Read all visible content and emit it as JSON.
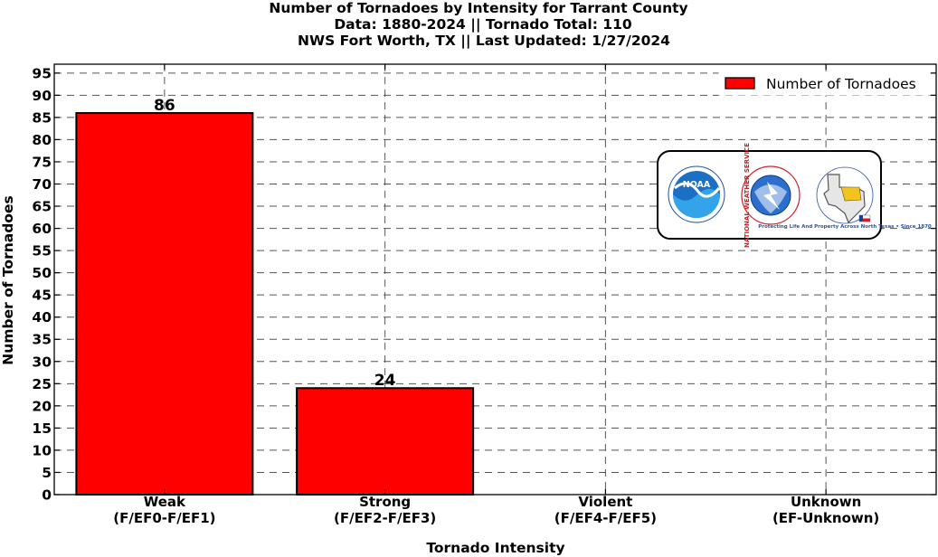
{
  "chart_data": {
    "type": "bar",
    "title_lines": [
      "Number of Tornadoes by Intensity for Tarrant County",
      "Data: 1880-2024 || Tornado Total: 110",
      "NWS Fort Worth, TX || Last Updated: 1/27/2024"
    ],
    "categories": [
      {
        "name": "Weak",
        "sub": "(F/EF0-F/EF1)"
      },
      {
        "name": "Strong",
        "sub": "(F/EF2-F/EF3)"
      },
      {
        "name": "Violent",
        "sub": "(F/EF4-F/EF5)"
      },
      {
        "name": "Unknown",
        "sub": "(EF-Unknown)"
      }
    ],
    "series": [
      {
        "name": "Number of Tornadoes",
        "values": [
          86,
          24,
          0,
          0
        ],
        "color": "#ff0000"
      }
    ],
    "data_labels": [
      "86",
      "24",
      "",
      ""
    ],
    "xlabel": "Tornado Intensity",
    "ylabel": "Number of Tornadoes",
    "ylim": [
      0,
      97
    ],
    "yticks": [
      0,
      5,
      10,
      15,
      20,
      25,
      30,
      35,
      40,
      45,
      50,
      55,
      60,
      65,
      70,
      75,
      80,
      85,
      90,
      95
    ],
    "grid": true,
    "legend_position": "top-right",
    "logos": [
      {
        "icon": "noaa-logo-icon",
        "text": "NOAA"
      },
      {
        "icon": "nws-logo-icon",
        "text": "NATIONAL WEATHER SERVICE"
      },
      {
        "icon": "nws-fort-worth-logo-icon",
        "text": "Protecting Life And Property Across North Texas • Since 1870"
      }
    ]
  }
}
